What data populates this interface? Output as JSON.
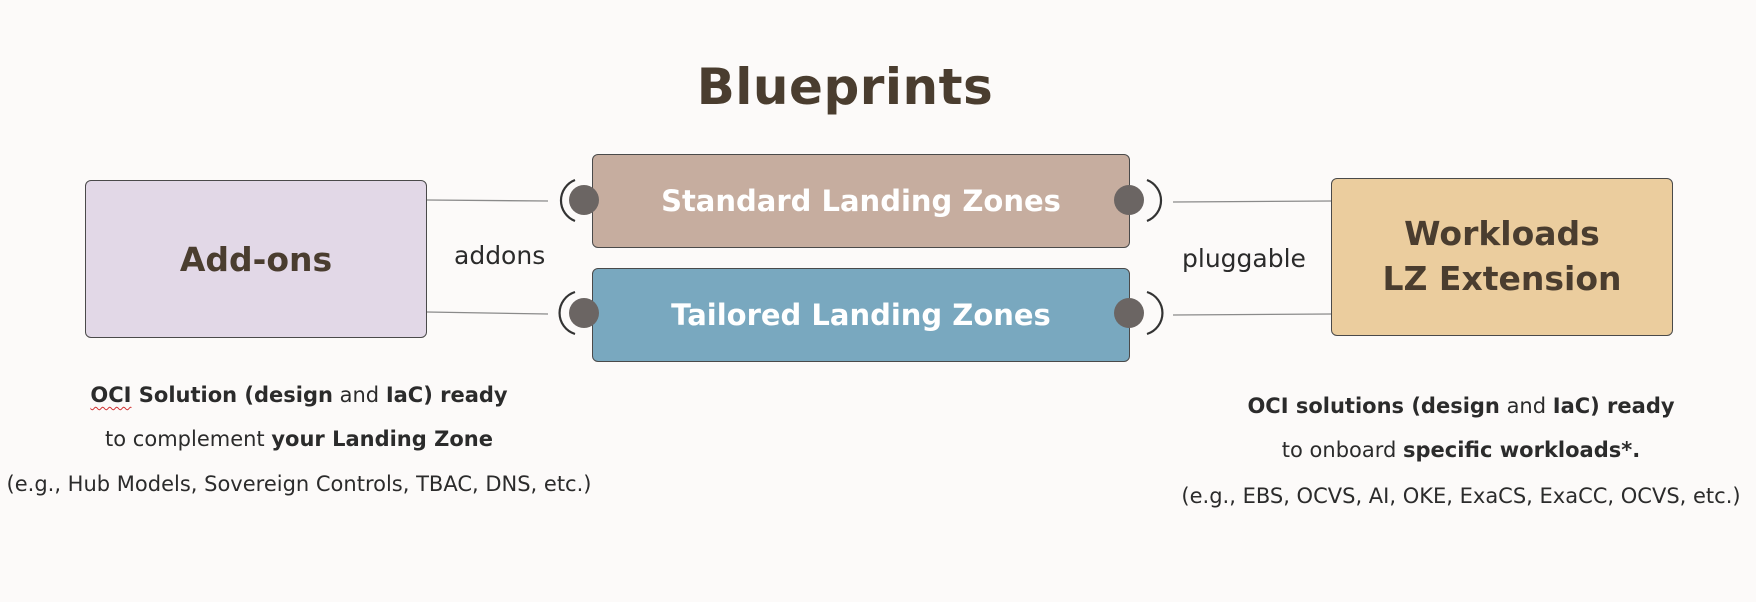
{
  "title": "Blueprints",
  "boxes": {
    "addons": "Add-ons",
    "standard": "Standard Landing Zones",
    "tailored": "Tailored Landing Zones",
    "workloads_line1": "Workloads",
    "workloads_line2": "LZ Extension"
  },
  "connector_labels": {
    "addons": "addons",
    "pluggable": "pluggable"
  },
  "left_desc": {
    "l1_a": "OCI",
    "l1_b": " Solution (design",
    "l1_c": " and ",
    "l1_d": "IaC) ready",
    "l2_a": "to complement ",
    "l2_b": "your Landing Zone",
    "l3": "(e.g., Hub Models, Sovereign Controls, TBAC, DNS, etc.)"
  },
  "right_desc": {
    "l1_a": "OCI solutions (design",
    "l1_b": " and ",
    "l1_c": "IaC) ready",
    "l2_a": "to onboard ",
    "l2_b": "specific workloads*.",
    "l3": "(e.g., EBS, OCVS, AI, OKE, ExaCS, ExaCC, OCVS, etc.)"
  },
  "colors": {
    "background": "#fcfaf9",
    "addons_fill": "#e2d8e7",
    "standard_fill": "#c6ad9f",
    "tailored_fill": "#79a8bf",
    "workloads_fill": "#ebcd9e",
    "title_color": "#4a3d2f",
    "connector_dot": "#6b6563"
  }
}
